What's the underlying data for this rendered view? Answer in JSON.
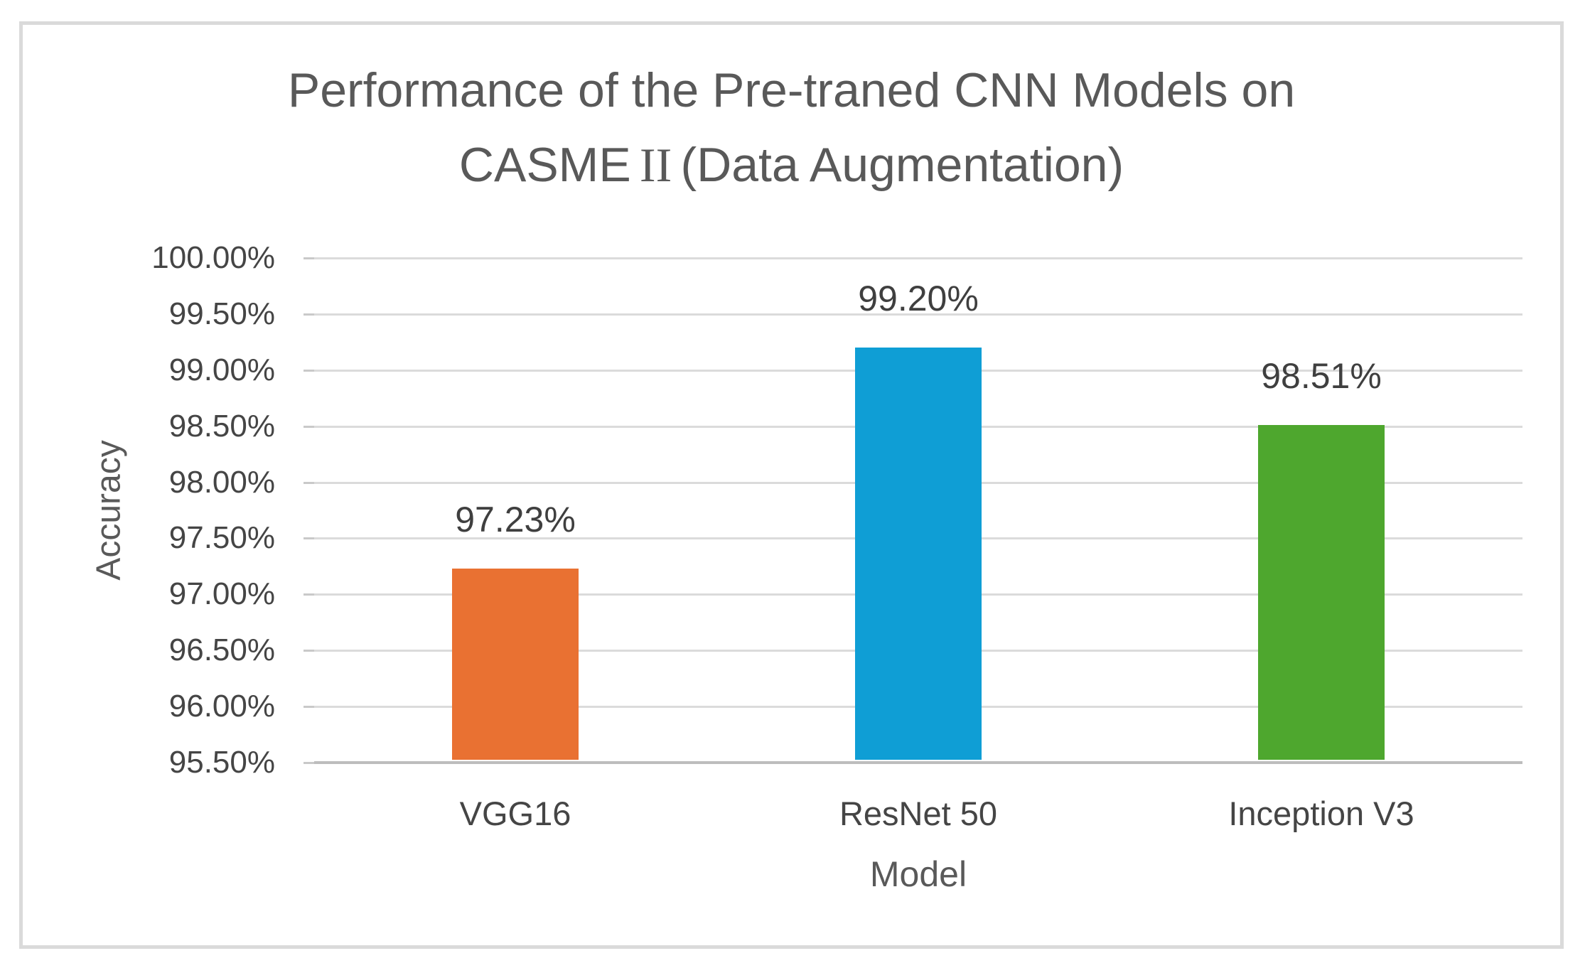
{
  "chart": {
    "title_line1": "Performance of the Pre-traned CNN Models on",
    "title_line2_pre": "CASME",
    "title_line2_roman": "II",
    "title_line2_post": "(Data Augmentation)"
  },
  "chart_data": {
    "type": "bar",
    "title": "Performance of the Pre-traned CNN Models on CASME II (Data Augmentation)",
    "categories": [
      "VGG16",
      "ResNet 50",
      "Inception V3"
    ],
    "values": [
      97.23,
      99.2,
      98.51
    ],
    "data_labels": [
      "97.23%",
      "99.20%",
      "98.51%"
    ],
    "bar_colors": [
      "#E97132",
      "#0F9ED5",
      "#4EA72E"
    ],
    "xlabel": "Model",
    "ylabel": "Accuracy",
    "ylim": [
      95.5,
      100.0
    ],
    "ytick_step": 0.5,
    "ytick_labels": [
      "100.00%",
      "99.50%",
      "99.00%",
      "98.50%",
      "98.00%",
      "97.50%",
      "97.00%",
      "96.50%",
      "96.00%",
      "95.50%"
    ],
    "grid": true,
    "legend": false,
    "colors": {
      "gridline": "#DBDBDB",
      "axis_line": "#BDBDBD",
      "tick": "#C9C9C9",
      "title_text": "#595959",
      "label_text": "#454545",
      "frame_border": "#DADADA",
      "background": "#FFFFFF"
    }
  }
}
